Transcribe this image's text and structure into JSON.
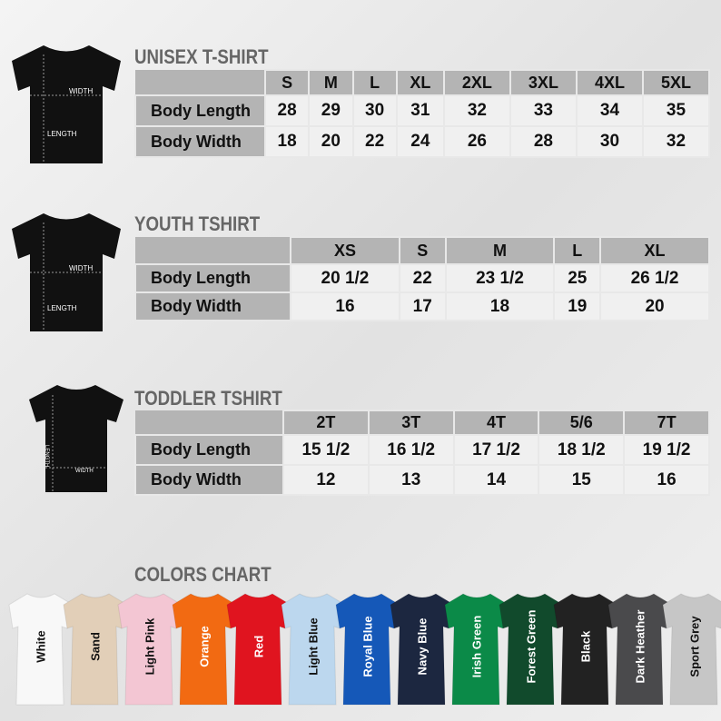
{
  "unisex": {
    "title": "UNISEX T-SHIRT",
    "sizes": [
      "S",
      "M",
      "L",
      "XL",
      "2XL",
      "3XL",
      "4XL",
      "5XL"
    ],
    "rows": [
      {
        "label": "Body Length",
        "values": [
          "28",
          "29",
          "30",
          "31",
          "32",
          "33",
          "34",
          "35"
        ]
      },
      {
        "label": "Body Width",
        "values": [
          "18",
          "20",
          "22",
          "24",
          "26",
          "28",
          "30",
          "32"
        ]
      }
    ],
    "diagram": {
      "width": "WIDTH",
      "length": "LENGTH"
    }
  },
  "youth": {
    "title": "YOUTH TSHIRT",
    "sizes": [
      "XS",
      "S",
      "M",
      "L",
      "XL"
    ],
    "rows": [
      {
        "label": "Body Length",
        "values": [
          "20 1/2",
          "22",
          "23 1/2",
          "25",
          "26 1/2"
        ]
      },
      {
        "label": "Body Width",
        "values": [
          "16",
          "17",
          "18",
          "19",
          "20"
        ]
      }
    ],
    "diagram": {
      "width": "WIDTH",
      "length": "LENGTH"
    }
  },
  "toddler": {
    "title": "TODDLER TSHIRT",
    "sizes": [
      "2T",
      "3T",
      "4T",
      "5/6",
      "7T"
    ],
    "rows": [
      {
        "label": "Body Length",
        "values": [
          "15 1/2",
          "16 1/2",
          "17 1/2",
          "18 1/2",
          "19 1/2"
        ]
      },
      {
        "label": "Body Width",
        "values": [
          "12",
          "13",
          "14",
          "15",
          "16"
        ]
      }
    ],
    "diagram": {
      "width": "WIDTH",
      "length": "LENGTH"
    }
  },
  "colors": {
    "title": "COLORS CHART",
    "items": [
      {
        "name": "White",
        "hex": "#f8f8f8",
        "text": "#111"
      },
      {
        "name": "Sand",
        "hex": "#e2cfb8",
        "text": "#111"
      },
      {
        "name": "Light Pink",
        "hex": "#f3c6d3",
        "text": "#111"
      },
      {
        "name": "Orange",
        "hex": "#f26a12",
        "text": "#fff"
      },
      {
        "name": "Red",
        "hex": "#e0141f",
        "text": "#fff"
      },
      {
        "name": "Light Blue",
        "hex": "#bcd7ee",
        "text": "#111"
      },
      {
        "name": "Royal Blue",
        "hex": "#1558b8",
        "text": "#fff"
      },
      {
        "name": "Navy Blue",
        "hex": "#1c2740",
        "text": "#fff"
      },
      {
        "name": "Irish Green",
        "hex": "#0b8a48",
        "text": "#fff"
      },
      {
        "name": "Forest Green",
        "hex": "#114a2c",
        "text": "#fff"
      },
      {
        "name": "Black",
        "hex": "#222222",
        "text": "#fff"
      },
      {
        "name": "Dark Heather",
        "hex": "#4a4a4c",
        "text": "#fff"
      },
      {
        "name": "Sport Grey",
        "hex": "#c6c6c6",
        "text": "#111"
      }
    ]
  }
}
